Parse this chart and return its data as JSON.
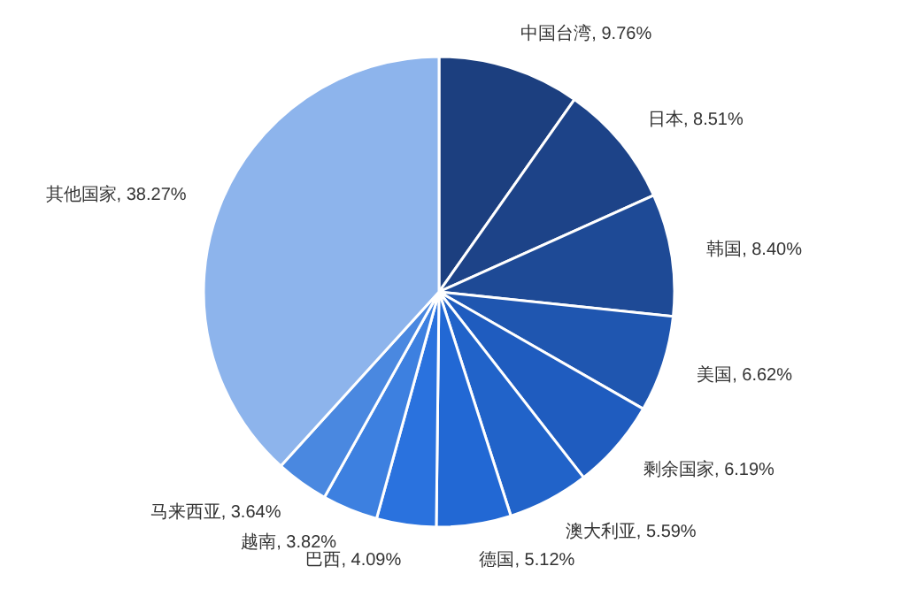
{
  "chart_data": {
    "type": "pie",
    "categories": [
      "中国台湾",
      "日本",
      "韩国",
      "美国",
      "剩余国家",
      "澳大利亚",
      "德国",
      "巴西",
      "越南",
      "马来西亚",
      "其他国家"
    ],
    "values": [
      9.76,
      8.51,
      8.4,
      6.62,
      6.19,
      5.59,
      5.12,
      4.09,
      3.82,
      3.64,
      38.27
    ],
    "value_labels": [
      "9.76%",
      "8.51%",
      "8.40%",
      "6.62%",
      "6.19%",
      "5.59%",
      "5.12%",
      "4.09%",
      "3.82%",
      "3.64%",
      "38.27%"
    ],
    "colors": [
      "#1c3f7f",
      "#1d4388",
      "#1e4a96",
      "#1f56b0",
      "#1f5cbf",
      "#2163c9",
      "#2268d4",
      "#2a72de",
      "#3d80e0",
      "#4a88e0",
      "#8db4ec"
    ]
  }
}
